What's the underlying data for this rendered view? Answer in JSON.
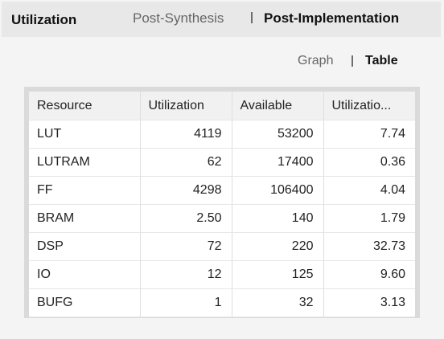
{
  "header": {
    "title": "Utilization",
    "tabs": [
      {
        "label": "Post-Synthesis",
        "active": false
      },
      {
        "label": "Post-Implementation",
        "active": true
      }
    ]
  },
  "view_toggle": {
    "options": [
      {
        "label": "Graph",
        "active": false
      },
      {
        "label": "Table",
        "active": true
      }
    ]
  },
  "table": {
    "columns": [
      "Resource",
      "Utilization",
      "Available",
      "Utilizatio..."
    ],
    "rows": [
      [
        "LUT",
        "4119",
        "53200",
        "7.74"
      ],
      [
        "LUTRAM",
        "62",
        "17400",
        "0.36"
      ],
      [
        "FF",
        "4298",
        "106400",
        "4.04"
      ],
      [
        "BRAM",
        "2.50",
        "140",
        "1.79"
      ],
      [
        "DSP",
        "72",
        "220",
        "32.73"
      ],
      [
        "IO",
        "12",
        "125",
        "9.60"
      ],
      [
        "BUFG",
        "1",
        "32",
        "3.13"
      ]
    ]
  },
  "colors": {
    "background": "#f4f4f4",
    "header_bg": "#e8e8e8",
    "frame": "#dadada",
    "inactive_text": "#666666",
    "active_text": "#111111"
  }
}
